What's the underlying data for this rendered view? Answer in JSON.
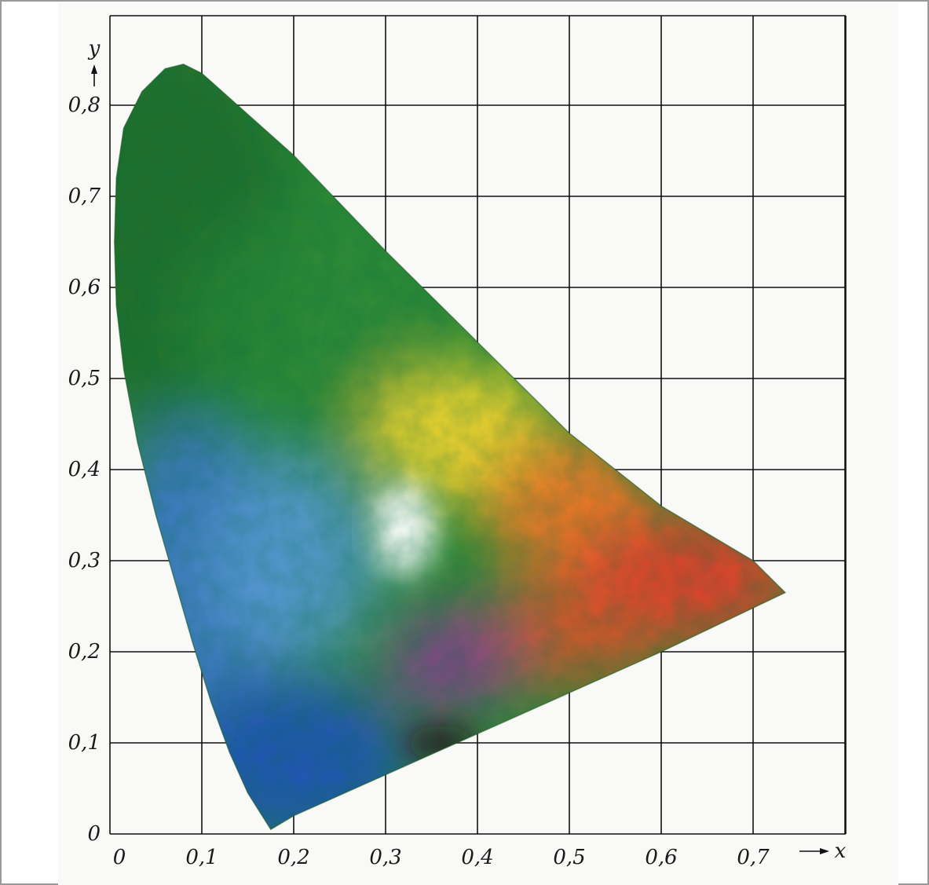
{
  "chart_data": {
    "type": "area",
    "title": "",
    "xlabel": "x",
    "ylabel": "y",
    "xlim": [
      0,
      0.8
    ],
    "ylim": [
      0,
      0.8
    ],
    "grid": true,
    "x_ticks": [
      "0",
      "0,1",
      "0,2",
      "0,3",
      "0,4",
      "0,5",
      "0,6",
      "0,7"
    ],
    "y_ticks": [
      "0",
      "0,1",
      "0,2",
      "0,3",
      "0,4",
      "0,5",
      "0,6",
      "0,7",
      "0,8"
    ],
    "series": [
      {
        "points": [
          [
            0.175,
            0.005
          ],
          [
            0.15,
            0.045
          ],
          [
            0.13,
            0.09
          ],
          [
            0.11,
            0.145
          ],
          [
            0.09,
            0.21
          ],
          [
            0.07,
            0.28
          ],
          [
            0.05,
            0.35
          ],
          [
            0.03,
            0.43
          ],
          [
            0.015,
            0.51
          ],
          [
            0.007,
            0.58
          ],
          [
            0.005,
            0.65
          ],
          [
            0.007,
            0.72
          ],
          [
            0.015,
            0.775
          ],
          [
            0.035,
            0.815
          ],
          [
            0.06,
            0.84
          ],
          [
            0.08,
            0.845
          ],
          [
            0.1,
            0.835
          ],
          [
            0.15,
            0.79
          ],
          [
            0.2,
            0.745
          ],
          [
            0.3,
            0.64
          ],
          [
            0.4,
            0.54
          ],
          [
            0.5,
            0.44
          ],
          [
            0.6,
            0.36
          ],
          [
            0.7,
            0.3
          ],
          [
            0.735,
            0.265
          ],
          [
            0.6,
            0.2
          ],
          [
            0.5,
            0.155
          ],
          [
            0.4,
            0.11
          ],
          [
            0.3,
            0.065
          ],
          [
            0.2,
            0.02
          ],
          [
            0.175,
            0.005
          ]
        ]
      }
    ],
    "colors": {
      "green": "#2e8a36",
      "dark_green": "#1f6a2c",
      "blue": "#3f78c8",
      "deep_blue": "#2457b2",
      "yellow": "#f2d52e",
      "orange": "#f07a28",
      "red": "#e8412a",
      "purple": "#8a3f8f",
      "dark": "#2a0f1e",
      "white": "#ffffff",
      "grid": "#111111"
    }
  }
}
